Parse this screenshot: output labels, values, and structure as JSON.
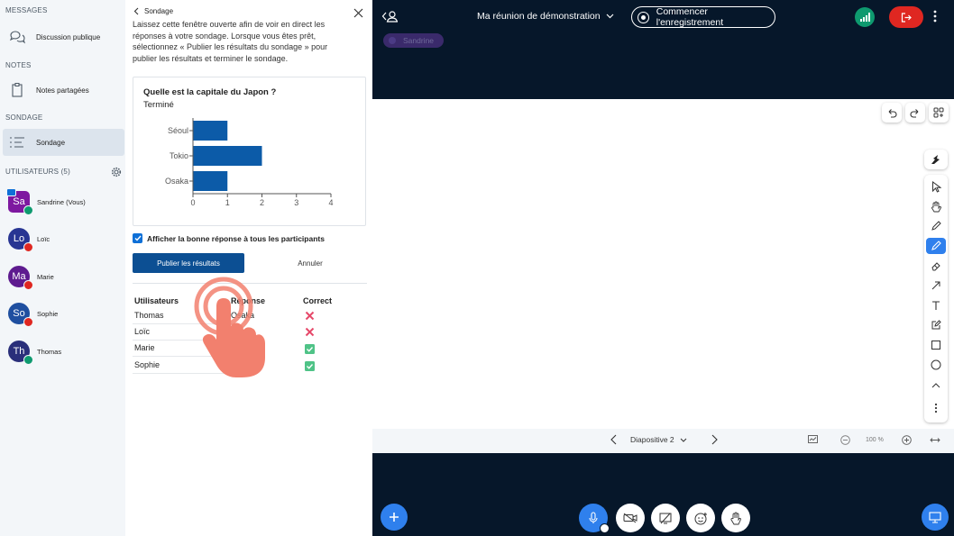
{
  "sidebar": {
    "messages_title": "MESSAGES",
    "public_chat": "Discussion publique",
    "notes_title": "NOTES",
    "shared_notes": "Notes partagées",
    "poll_title": "SONDAGE",
    "poll_item": "Sondage",
    "users_title": "UTILISATEURS (5)",
    "users": [
      {
        "initials": "Sa",
        "name": "Sandrine (Vous)",
        "color": "#7e18a0",
        "badge": "#0e9a6f"
      },
      {
        "initials": "Lo",
        "name": "Loïc",
        "color": "#283593",
        "badge": "#df2721"
      },
      {
        "initials": "Ma",
        "name": "Marie",
        "color": "#5e1b8f",
        "badge": "#df2721"
      },
      {
        "initials": "So",
        "name": "Sophie",
        "color": "#1f4fa0",
        "badge": "#df2721"
      },
      {
        "initials": "Th",
        "name": "Thomas",
        "color": "#2a2f7a",
        "badge": "#0e9a6f"
      }
    ]
  },
  "panel": {
    "back_label": "Sondage",
    "intro": "Laissez cette fenêtre ouverte afin de voir en direct les réponses à votre sondage. Lorsque vous êtes prêt, sélectionnez « Publier les résultats du sondage » pour publier les résultats et terminer le sondage.",
    "question": "Quelle est la capitale du Japon ?",
    "status": "Terminé",
    "show_answer_label": "Afficher la bonne réponse à tous les participants",
    "publish_label": "Publier les résultats",
    "cancel_label": "Annuler",
    "table_headers": {
      "users": "Utilisateurs",
      "response": "Réponse",
      "correct": "Correct"
    },
    "rows": [
      {
        "user": "Thomas",
        "response": "Osaka",
        "correct": false
      },
      {
        "user": "Loïc",
        "response": "",
        "correct": false
      },
      {
        "user": "Marie",
        "response": "",
        "correct": true
      },
      {
        "user": "Sophie",
        "response": "",
        "correct": true
      }
    ]
  },
  "chart_data": {
    "type": "bar",
    "orientation": "horizontal",
    "categories": [
      "Séoul",
      "Tokio",
      "Osaka"
    ],
    "values": [
      1,
      2,
      1
    ],
    "xlim": [
      0,
      4
    ],
    "xticks": [
      "0",
      "1",
      "2",
      "3",
      "4"
    ],
    "color": "#0c5ba8"
  },
  "stage": {
    "meeting_title": "Ma réunion de démonstration",
    "record_label": "Commencer l'enregistrement",
    "talker": "Sandrine",
    "slide_label": "Diapositive 2",
    "zoom": "100 %"
  },
  "colors": {
    "accent": "#0f70d7",
    "danger": "#df2721",
    "success": "#0e9a6f",
    "dark_bg": "#06172a"
  }
}
